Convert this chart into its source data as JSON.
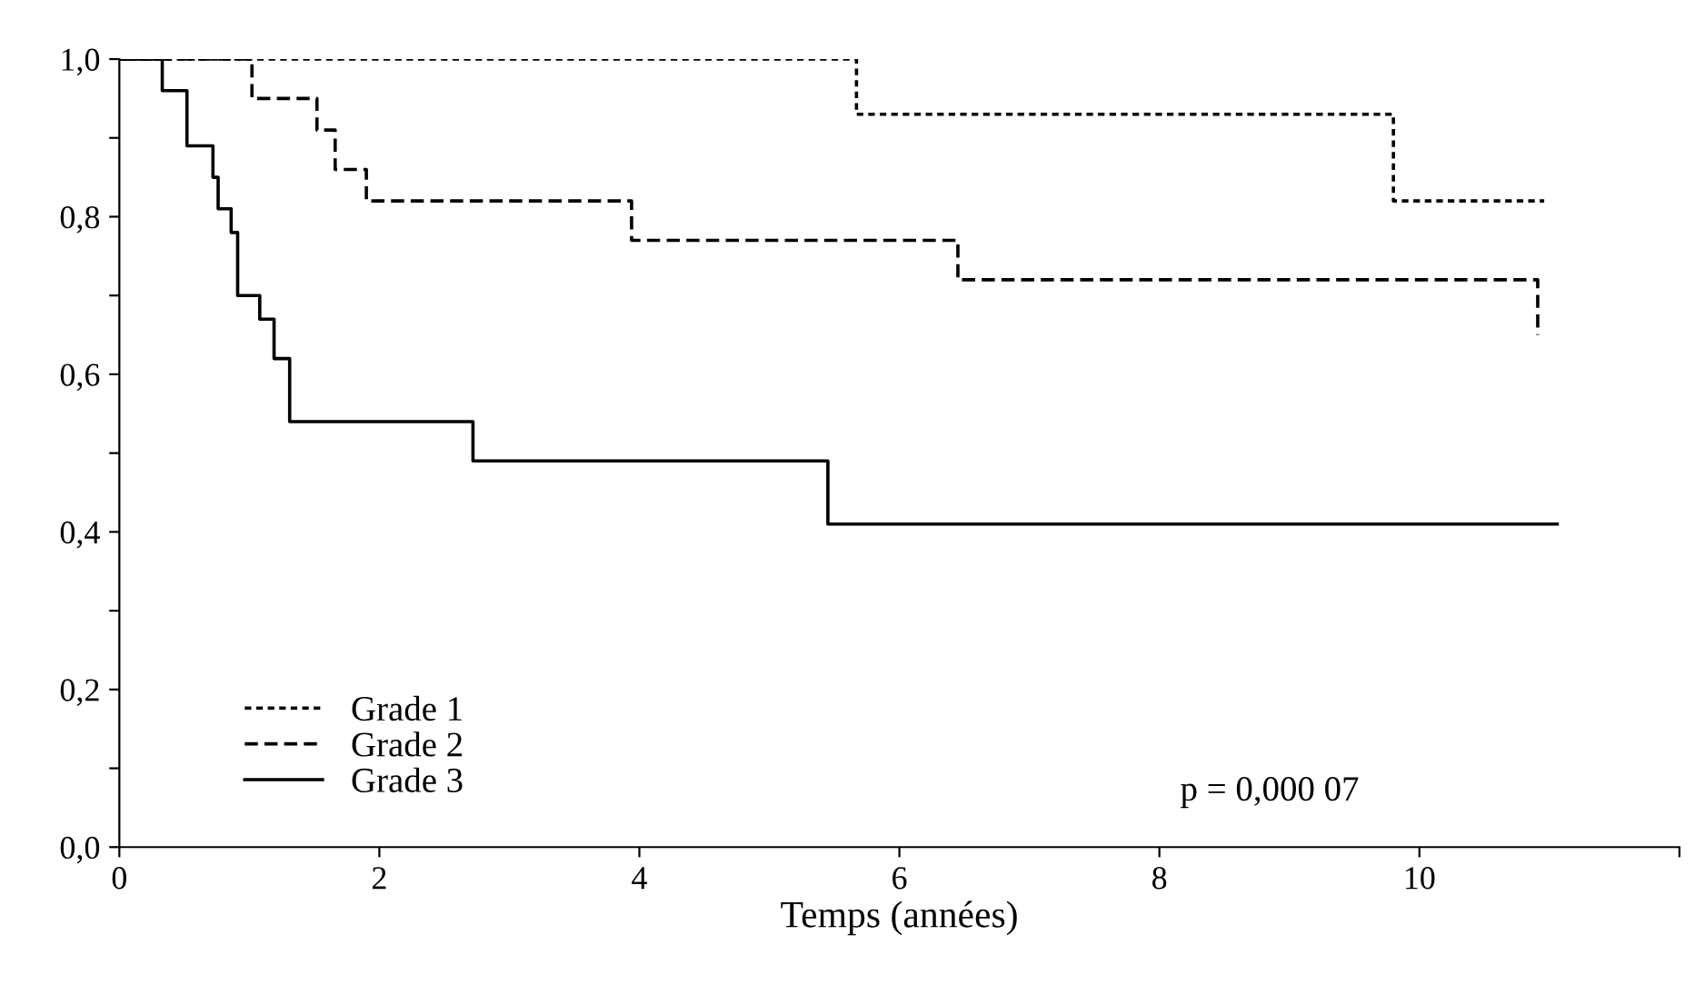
{
  "chart_data": {
    "type": "step",
    "xlabel": "Temps (années)",
    "xlim": [
      0,
      12
    ],
    "ylim": [
      0,
      1
    ],
    "xticks": [
      0,
      2,
      4,
      6,
      8,
      10,
      {
        "value": 12,
        "label": null
      }
    ],
    "yticks": [
      {
        "value": 0,
        "label": "0,0"
      },
      {
        "value": 0.1,
        "label": null
      },
      {
        "value": 0.2,
        "label": "0,2"
      },
      {
        "value": 0.3,
        "label": null
      },
      {
        "value": 0.4,
        "label": "0,4"
      },
      {
        "value": 0.5,
        "label": null
      },
      {
        "value": 0.6,
        "label": "0,6"
      },
      {
        "value": 0.7,
        "label": null
      },
      {
        "value": 0.8,
        "label": "0,8"
      },
      {
        "value": 0.9,
        "label": null
      },
      {
        "value": 1.0,
        "label": "1,0"
      }
    ],
    "grid": false,
    "legend": "bottom left",
    "series": [
      {
        "name": "Grade 1",
        "color": "#000000",
        "line_style": "dotted",
        "x": [
          0,
          5.67,
          9.8,
          10.96
        ],
        "values": [
          1.0,
          0.93,
          0.82,
          0.82
        ]
      },
      {
        "name": "Grade 2",
        "color": "#000000",
        "line_style": "dashed",
        "x": [
          0,
          1.02,
          1.52,
          1.66,
          1.9,
          3.94,
          6.45,
          10.91
        ],
        "values": [
          1.0,
          0.95,
          0.91,
          0.86,
          0.82,
          0.77,
          0.72,
          0.65
        ]
      },
      {
        "name": "Grade 3",
        "color": "#000000",
        "line_style": "solid",
        "x": [
          0,
          0.33,
          0.52,
          0.72,
          0.76,
          0.86,
          0.91,
          1.08,
          1.19,
          1.31,
          2.72,
          5.45,
          11.06
        ],
        "values": [
          1.0,
          0.96,
          0.89,
          0.85,
          0.81,
          0.78,
          0.7,
          0.67,
          0.62,
          0.54,
          0.49,
          0.41,
          0.41
        ]
      }
    ],
    "annotations": [
      "p = 0,000 07"
    ]
  }
}
